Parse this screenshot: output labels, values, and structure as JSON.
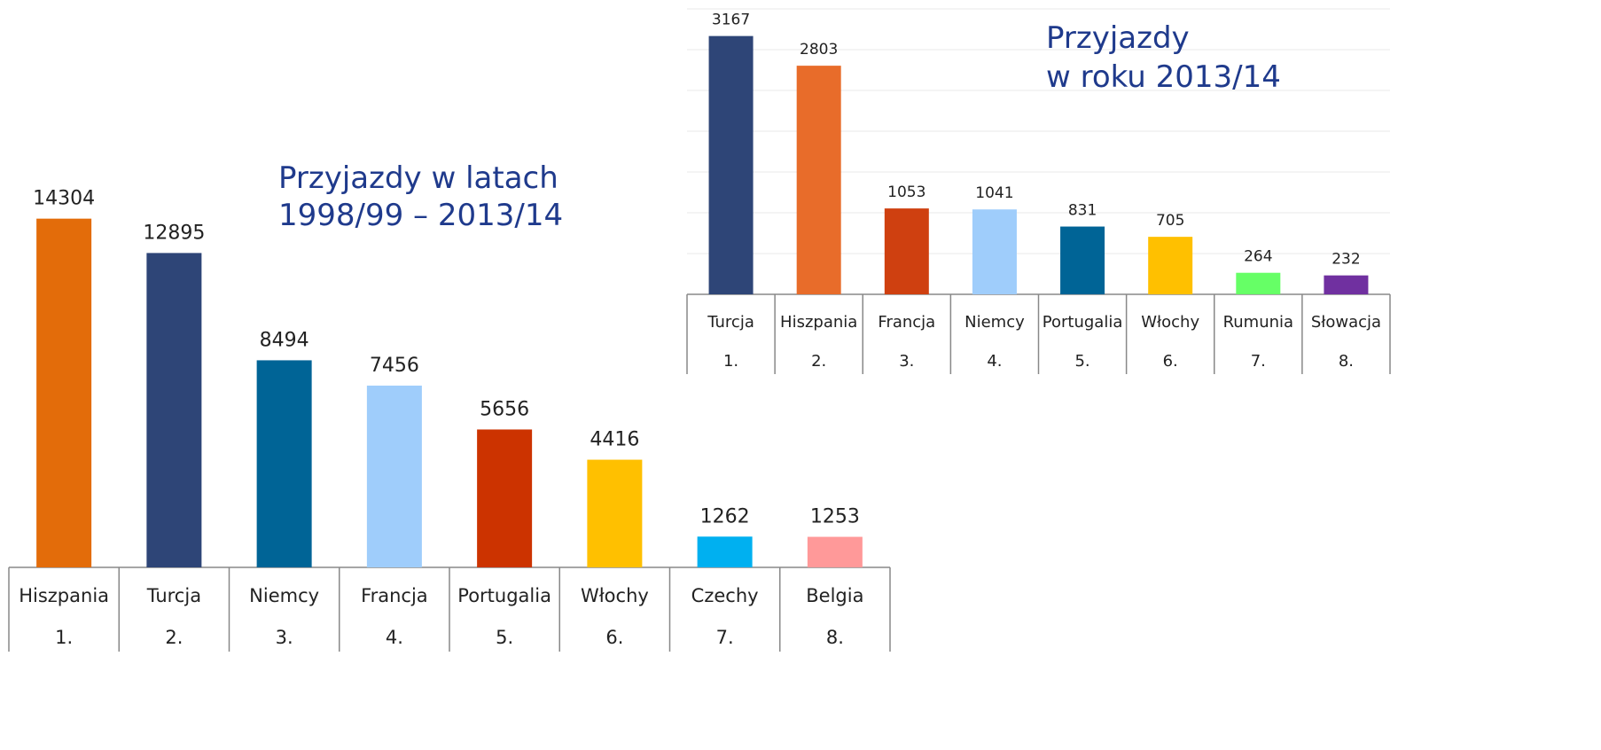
{
  "chart_data": [
    {
      "type": "bar",
      "title": [
        "Przyjazdy w latach",
        "1998/99 – 2013/14"
      ],
      "categories": [
        "Hiszpania",
        "Turcja",
        "Niemcy",
        "Francja",
        "Portugalia",
        "Włochy",
        "Czechy",
        "Belgia"
      ],
      "ranks": [
        "1.",
        "2.",
        "3.",
        "4.",
        "5.",
        "6.",
        "7.",
        "8."
      ],
      "values": [
        14304,
        12895,
        8494,
        7456,
        5656,
        4416,
        1262,
        1253
      ],
      "colors": [
        "#e36c0a",
        "#2e4577",
        "#006496",
        "#9fcdfb",
        "#cc3300",
        "#ffc000",
        "#00b0f0",
        "#ff9999"
      ],
      "ylim": [
        0,
        16000
      ],
      "grid": false
    },
    {
      "type": "bar",
      "title": [
        "Przyjazdy",
        "w roku 2013/14"
      ],
      "categories": [
        "Turcja",
        "Hiszpania",
        "Francja",
        "Niemcy",
        "Portugalia",
        "Włochy",
        "Rumunia",
        "Słowacja"
      ],
      "ranks": [
        "1.",
        "2.",
        "3.",
        "4.",
        "5.",
        "6.",
        "7.",
        "8."
      ],
      "values": [
        3167,
        2803,
        1053,
        1041,
        831,
        705,
        264,
        232
      ],
      "colors": [
        "#2e4577",
        "#e86c2a",
        "#cf4010",
        "#9fcdfb",
        "#006496",
        "#ffc000",
        "#66ff66",
        "#7030a0"
      ],
      "ylim": [
        0,
        3500
      ],
      "yticks": [
        0,
        500,
        1000,
        1500,
        2000,
        2500,
        3000,
        3500
      ],
      "grid": true
    }
  ]
}
